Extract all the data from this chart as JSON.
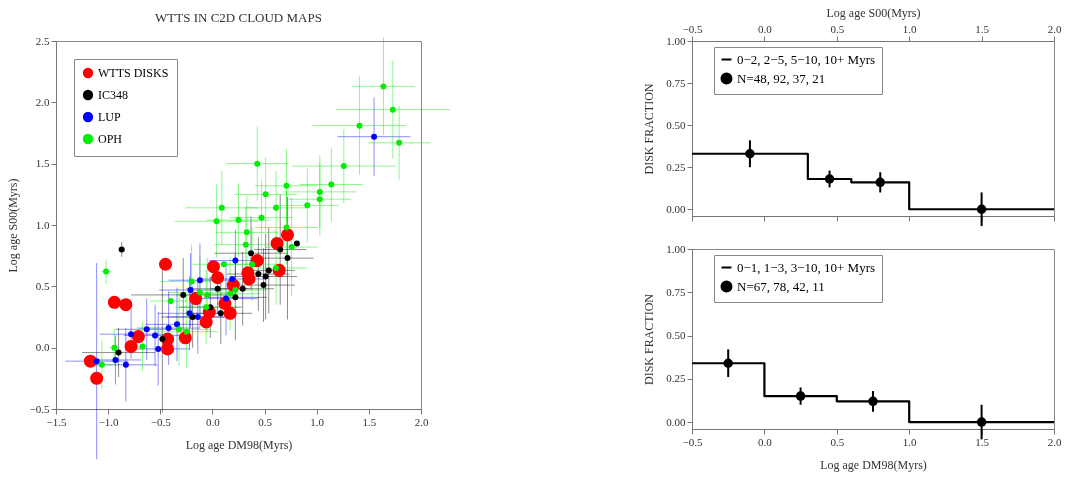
{
  "chart_data": [
    {
      "type": "scatter",
      "title": "WTTS IN C2D CLOUD MAPS",
      "xlabel": "Log age DM98(Myrs)",
      "ylabel": "Log age S00(Myrs)",
      "xlim": [
        -1.5,
        2.0
      ],
      "ylim": [
        -0.5,
        2.5
      ],
      "xticks": [
        -1.5,
        {
          "value": -1,
          "label": "−1.0"
        },
        -0.5,
        {
          "value": 0,
          "label": "0.0"
        },
        0.5,
        {
          "value": 1,
          "label": "1.0"
        },
        1.5,
        {
          "value": 2,
          "label": "2.0"
        }
      ],
      "yticks": [
        -0.5,
        {
          "value": 0,
          "label": "0.0"
        },
        0.5,
        {
          "value": 1,
          "label": "1.0"
        },
        1.5,
        {
          "value": 2,
          "label": "2.0"
        },
        2.5
      ],
      "legend": "top left",
      "marker": "circle",
      "series": [
        {
          "name": "WTTS DISKS",
          "color": "#ff0000",
          "x": [
            -1.17,
            -1.11,
            -0.94,
            -0.83,
            -0.78,
            -0.71,
            -0.45,
            -0.43,
            -0.43,
            -0.26,
            -0.16,
            -0.06,
            -0.03,
            0.01,
            0.05,
            0.12,
            0.17,
            0.2,
            0.34,
            0.35,
            0.43,
            0.62,
            0.64,
            0.72
          ],
          "values": [
            -0.11,
            -0.25,
            0.37,
            0.35,
            0.01,
            0.09,
            0.68,
            0.07,
            -0.01,
            0.08,
            0.4,
            0.21,
            0.29,
            0.66,
            0.57,
            0.36,
            0.28,
            0.51,
            0.61,
            0.56,
            0.71,
            0.85,
            0.63,
            0.92
          ]
        },
        {
          "name": "IC348",
          "color": "#000000",
          "x": [
            -0.87,
            -0.9,
            -0.28,
            -0.48,
            -0.19,
            0.05,
            -0.02,
            0.22,
            0.37,
            0.51,
            0.49,
            0.54,
            0.65,
            0.81,
            0.72,
            0.44,
            0.08,
            0.29
          ],
          "values": [
            0.8,
            -0.04,
            0.43,
            0.07,
            0.25,
            0.48,
            0.33,
            0.41,
            0.77,
            0.58,
            0.51,
            0.63,
            0.8,
            0.85,
            0.73,
            0.6,
            0.28,
            0.48
          ],
          "errors": [
            0.06,
            0.2,
            0.3,
            0.6,
            0.25,
            0.2,
            0.25,
            0.35,
            0.3,
            0.35,
            0.3,
            0.35,
            0.45,
            null,
            0.5,
            0.3,
            0.25,
            0.3
          ],
          "xerrors": [
            0.03,
            0.35,
            0.5,
            null,
            0.3,
            0.3,
            0.3,
            0.3,
            0.35,
            0.3,
            0.3,
            0.25,
            0.25,
            null,
            0.25,
            0.3,
            0.3,
            0.3
          ]
        },
        {
          "name": "LUP",
          "color": "#0000ff",
          "x": [
            -1.11,
            -0.93,
            -0.83,
            -0.78,
            -0.63,
            -0.55,
            -0.52,
            -0.42,
            -0.34,
            -0.21,
            -0.12,
            -0.14,
            0.13,
            0.22,
            0.19,
            1.55,
            -0.22
          ],
          "values": [
            -0.11,
            -0.1,
            -0.14,
            0.11,
            0.15,
            0.1,
            -0.01,
            0.16,
            0.19,
            0.47,
            0.55,
            0.25,
            0.4,
            0.71,
            0.56,
            1.72,
            0.28
          ],
          "errors": [
            0.8,
            0.2,
            0.3,
            0.2,
            0.25,
            0.25,
            0.3,
            0.3,
            0.3,
            0.3,
            0.3,
            0.3,
            0.3,
            0.25,
            null,
            0.32,
            0.3
          ],
          "xerrors": [
            0.3,
            0.25,
            0.3,
            0.3,
            0.3,
            0.3,
            0.3,
            0.3,
            0.3,
            0.3,
            0.3,
            0.3,
            0.3,
            0.25,
            0.3,
            0.35,
            0.3
          ]
        },
        {
          "name": "OPH",
          "color": "#00ee00",
          "x": [
            -1.02,
            -0.94,
            -1.06,
            -0.67,
            -0.4,
            -0.32,
            -0.2,
            -0.12,
            -0.05,
            0.04,
            0.09,
            0.11,
            0.25,
            0.33,
            0.32,
            0.43,
            0.47,
            0.51,
            0.61,
            0.61,
            0.71,
            0.71,
            0.76,
            0.91,
            1.03,
            1.03,
            1.14,
            1.26,
            1.41,
            1.64,
            1.73,
            1.79,
            0.17,
            0.22,
            -0.25,
            -0.06,
            0.38
          ],
          "values": [
            0.62,
            0.0,
            -0.14,
            0.01,
            0.38,
            0.15,
            0.54,
            0.45,
            0.43,
            1.03,
            1.14,
            0.68,
            1.04,
            0.94,
            0.84,
            1.5,
            1.06,
            1.25,
            1.14,
            0.65,
            1.32,
            0.98,
            0.82,
            1.16,
            1.27,
            1.21,
            1.33,
            1.48,
            1.81,
            2.13,
            1.94,
            1.67,
            0.44,
            0.47,
            0.13,
            0.33,
            0.68
          ],
          "errors": [
            0.1,
            0.15,
            0.2,
            0.2,
            null,
            0.3,
            0.3,
            0.3,
            0.3,
            0.3,
            0.3,
            null,
            0.3,
            0.3,
            0.3,
            0.3,
            0.3,
            0.3,
            0.3,
            0.3,
            0.3,
            0.3,
            0.4,
            0.3,
            0.3,
            0.3,
            0.3,
            0.3,
            0.4,
            0.4,
            0.4,
            0.3,
            0.3,
            null,
            0.3,
            0.3,
            0.3
          ],
          "xerrors": [
            0.05,
            0.05,
            0.1,
            0.05,
            0.2,
            0.3,
            0.3,
            0.3,
            0.3,
            0.4,
            0.35,
            0.3,
            0.3,
            0.3,
            0.3,
            0.3,
            0.3,
            0.3,
            0.3,
            0.3,
            0.3,
            0.3,
            0.25,
            0.3,
            0.35,
            0.3,
            0.3,
            0.5,
            0.45,
            0.3,
            0.55,
            0.3,
            0.3,
            0.3,
            0.3,
            0.3,
            0.3
          ]
        }
      ]
    },
    {
      "type": "step",
      "ylabel": "DISK FRACTION",
      "x2label": "Log age S00(Myrs)",
      "xlim": [
        -0.5,
        2.0
      ],
      "x2lim": [
        -0.5,
        2.0
      ],
      "x2ticks": [
        -0.5,
        {
          "value": 0,
          "label": "0.0"
        },
        0.5,
        {
          "value": 1,
          "label": "1.0"
        },
        1.5,
        {
          "value": 2,
          "label": "2.0"
        }
      ],
      "ylim": [
        -0.04,
        1.0
      ],
      "yticks": [
        {
          "value": 0,
          "label": "0.00"
        },
        0.25,
        {
          "value": 0.5,
          "label": "0.50"
        },
        0.75,
        {
          "value": 1,
          "label": "1.00"
        }
      ],
      "tick_labels": "y",
      "legend": "top",
      "series": [
        {
          "name": "0−2, 2−5, 5−10, 10+ Myrs",
          "color": "#000000",
          "x": [
            -0.5,
            0.3,
            0.6,
            1.0,
            2.0
          ],
          "values": [
            0.33,
            0.18,
            0.16,
            0.0,
            0.0
          ]
        },
        {
          "name": "N=48, 92, 37, 21",
          "type": "scatter",
          "marker": "circle",
          "color": "#000000",
          "x": [
            -0.1,
            0.45,
            0.8,
            1.5
          ],
          "values": [
            0.33,
            0.18,
            0.16,
            0.0
          ],
          "errors": [
            0.08,
            0.05,
            0.06,
            0.1
          ]
        }
      ]
    },
    {
      "type": "step",
      "ylabel": "DISK FRACTION",
      "xlabel": "Log age DM98(Myrs)",
      "xlim": [
        -0.5,
        2.0
      ],
      "xticks": [
        -0.5,
        {
          "value": 0,
          "label": "0.0"
        },
        0.5,
        {
          "value": 1,
          "label": "1.0"
        },
        1.5,
        {
          "value": 2,
          "label": "2.0"
        }
      ],
      "ylim": [
        -0.04,
        1.0
      ],
      "yticks": [
        {
          "value": 0,
          "label": "0.00"
        },
        0.25,
        {
          "value": 0.5,
          "label": "0.50"
        },
        0.75,
        {
          "value": 1,
          "label": "1.00"
        }
      ],
      "legend": "top",
      "series": [
        {
          "name": "0−1, 1−3, 3−10, 10+ Myrs",
          "color": "#000000",
          "x": [
            -0.5,
            0.0,
            0.5,
            1.0,
            2.0
          ],
          "values": [
            0.34,
            0.15,
            0.12,
            0.0,
            0.0
          ]
        },
        {
          "name": "N=67, 78, 42, 11",
          "type": "scatter",
          "marker": "circle",
          "color": "#000000",
          "x": [
            -0.25,
            0.25,
            0.75,
            1.5
          ],
          "values": [
            0.34,
            0.15,
            0.12,
            0.0
          ],
          "errors": [
            0.08,
            0.05,
            0.06,
            0.1
          ]
        }
      ]
    }
  ]
}
